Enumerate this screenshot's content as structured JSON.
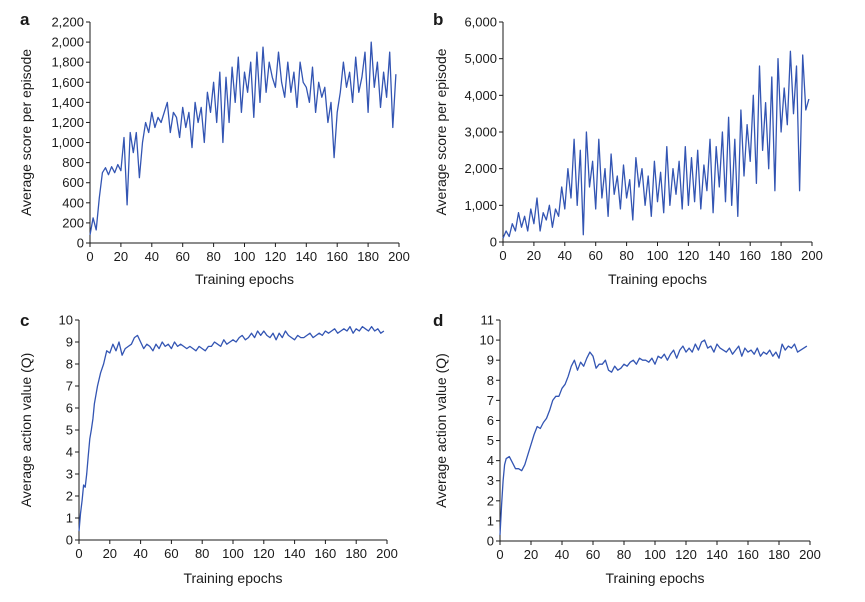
{
  "figure": {
    "background": "#ffffff",
    "line_color": "#3355b3"
  },
  "chart_data": [
    {
      "panel": "a",
      "type": "line",
      "xlabel": "Training epochs",
      "ylabel": "Average score per episode",
      "xlim": [
        0,
        200
      ],
      "ylim": [
        0,
        2200
      ],
      "xticks": [
        0,
        20,
        40,
        60,
        80,
        100,
        120,
        140,
        160,
        180,
        200
      ],
      "yticks": [
        0,
        200,
        400,
        600,
        800,
        1000,
        1200,
        1400,
        1600,
        1800,
        2000,
        2200
      ],
      "xtick_labels": [
        "0",
        "20",
        "40",
        "60",
        "80",
        "100",
        "120",
        "140",
        "160",
        "180",
        "200"
      ],
      "ytick_labels": [
        "0",
        "200",
        "400",
        "600",
        "800",
        "1,000",
        "1,200",
        "1,400",
        "1,600",
        "1,800",
        "2,000",
        "2,200"
      ],
      "series": [
        {
          "name": "score",
          "x": [
            0,
            2,
            4,
            6,
            8,
            10,
            12,
            14,
            16,
            18,
            20,
            22,
            24,
            26,
            28,
            30,
            32,
            34,
            36,
            38,
            40,
            42,
            44,
            46,
            48,
            50,
            52,
            54,
            56,
            58,
            60,
            62,
            64,
            66,
            68,
            70,
            72,
            74,
            76,
            78,
            80,
            82,
            84,
            86,
            88,
            90,
            92,
            94,
            96,
            98,
            100,
            102,
            104,
            106,
            108,
            110,
            112,
            114,
            116,
            118,
            120,
            122,
            124,
            126,
            128,
            130,
            132,
            134,
            136,
            138,
            140,
            142,
            144,
            146,
            148,
            150,
            152,
            154,
            156,
            158,
            160,
            162,
            164,
            166,
            168,
            170,
            172,
            174,
            176,
            178,
            180,
            182,
            184,
            186,
            188,
            190,
            192,
            194,
            196,
            198
          ],
          "y": [
            80,
            250,
            130,
            450,
            700,
            750,
            680,
            760,
            700,
            780,
            720,
            1050,
            380,
            1100,
            900,
            1100,
            650,
            1000,
            1200,
            1100,
            1300,
            1150,
            1250,
            1200,
            1300,
            1400,
            1100,
            1300,
            1250,
            1050,
            1350,
            1150,
            1300,
            950,
            1400,
            1200,
            1350,
            1000,
            1500,
            1300,
            1600,
            1200,
            1700,
            1000,
            1650,
            1200,
            1750,
            1400,
            1850,
            1300,
            1700,
            1500,
            1800,
            1250,
            1900,
            1400,
            1950,
            1500,
            1800,
            1650,
            1550,
            1900,
            1600,
            1450,
            1800,
            1500,
            1700,
            1350,
            1800,
            1600,
            1550,
            1400,
            1750,
            1300,
            1600,
            1450,
            1550,
            1200,
            1400,
            850,
            1300,
            1500,
            1800,
            1550,
            1700,
            1400,
            1850,
            1500,
            1650,
            1900,
            1300,
            2000,
            1550,
            1800,
            1350,
            1700,
            1450,
            1900,
            1150,
            1680
          ]
        }
      ]
    },
    {
      "panel": "b",
      "type": "line",
      "xlabel": "Training epochs",
      "ylabel": "Average score per episode",
      "xlim": [
        0,
        200
      ],
      "ylim": [
        0,
        6000
      ],
      "xticks": [
        0,
        20,
        40,
        60,
        80,
        100,
        120,
        140,
        160,
        180,
        200
      ],
      "yticks": [
        0,
        1000,
        2000,
        3000,
        4000,
        5000,
        6000
      ],
      "xtick_labels": [
        "0",
        "20",
        "40",
        "60",
        "80",
        "100",
        "120",
        "140",
        "160",
        "180",
        "200"
      ],
      "ytick_labels": [
        "0",
        "1,000",
        "2,000",
        "3,000",
        "4,000",
        "5,000",
        "6,000"
      ],
      "series": [
        {
          "name": "score",
          "x": [
            0,
            2,
            4,
            6,
            8,
            10,
            12,
            14,
            16,
            18,
            20,
            22,
            24,
            26,
            28,
            30,
            32,
            34,
            36,
            38,
            40,
            42,
            44,
            46,
            48,
            50,
            52,
            54,
            56,
            58,
            60,
            62,
            64,
            66,
            68,
            70,
            72,
            74,
            76,
            78,
            80,
            82,
            84,
            86,
            88,
            90,
            92,
            94,
            96,
            98,
            100,
            102,
            104,
            106,
            108,
            110,
            112,
            114,
            116,
            118,
            120,
            122,
            124,
            126,
            128,
            130,
            132,
            134,
            136,
            138,
            140,
            142,
            144,
            146,
            148,
            150,
            152,
            154,
            156,
            158,
            160,
            162,
            164,
            166,
            168,
            170,
            172,
            174,
            176,
            178,
            180,
            182,
            184,
            186,
            188,
            190,
            192,
            194,
            196,
            198
          ],
          "y": [
            100,
            300,
            150,
            500,
            300,
            800,
            400,
            700,
            300,
            900,
            500,
            1200,
            300,
            800,
            600,
            1000,
            400,
            900,
            700,
            1500,
            900,
            2000,
            1200,
            2800,
            1000,
            2500,
            200,
            3000,
            1500,
            2200,
            900,
            2800,
            1200,
            2000,
            700,
            2400,
            1300,
            1800,
            900,
            2100,
            1200,
            1700,
            600,
            2300,
            1500,
            2000,
            1000,
            1800,
            700,
            2200,
            1100,
            1900,
            800,
            2600,
            1000,
            2000,
            1300,
            2200,
            900,
            2600,
            1000,
            2300,
            1100,
            2500,
            900,
            2100,
            1400,
            2800,
            800,
            2600,
            1500,
            3000,
            1100,
            3400,
            1000,
            2800,
            700,
            3600,
            1800,
            3200,
            2200,
            4000,
            1600,
            4800,
            2500,
            3800,
            2000,
            4500,
            1400,
            5000,
            3000,
            4200,
            3200,
            5200,
            3500,
            4800,
            1400,
            5100,
            3600,
            3900
          ]
        }
      ]
    },
    {
      "panel": "c",
      "type": "line",
      "xlabel": "Training epochs",
      "ylabel": "Average action value (Q)",
      "xlim": [
        0,
        200
      ],
      "ylim": [
        0,
        10
      ],
      "xticks": [
        0,
        20,
        40,
        60,
        80,
        100,
        120,
        140,
        160,
        180,
        200
      ],
      "yticks": [
        0,
        1,
        2,
        3,
        4,
        5,
        6,
        7,
        8,
        9,
        10
      ],
      "xtick_labels": [
        "0",
        "20",
        "40",
        "60",
        "80",
        "100",
        "120",
        "140",
        "160",
        "180",
        "200"
      ],
      "ytick_labels": [
        "0",
        "1",
        "2",
        "3",
        "4",
        "5",
        "6",
        "7",
        "8",
        "9",
        "10"
      ],
      "series": [
        {
          "name": "Q",
          "x": [
            0,
            1,
            2,
            3,
            4,
            5,
            6,
            7,
            8,
            9,
            10,
            12,
            14,
            16,
            18,
            20,
            22,
            24,
            26,
            28,
            30,
            32,
            34,
            36,
            38,
            40,
            42,
            44,
            46,
            48,
            50,
            52,
            54,
            56,
            58,
            60,
            62,
            64,
            66,
            68,
            70,
            72,
            74,
            76,
            78,
            80,
            82,
            84,
            86,
            88,
            90,
            92,
            94,
            96,
            98,
            100,
            102,
            104,
            106,
            108,
            110,
            112,
            114,
            116,
            118,
            120,
            122,
            124,
            126,
            128,
            130,
            132,
            134,
            136,
            138,
            140,
            142,
            144,
            146,
            148,
            150,
            152,
            154,
            156,
            158,
            160,
            162,
            164,
            166,
            168,
            170,
            172,
            174,
            176,
            178,
            180,
            182,
            184,
            186,
            188,
            190,
            192,
            194,
            196,
            198
          ],
          "y": [
            0.4,
            1.2,
            1.8,
            2.5,
            2.4,
            3.0,
            3.8,
            4.6,
            5.0,
            5.5,
            6.2,
            7.0,
            7.6,
            8.0,
            8.6,
            8.5,
            8.9,
            8.6,
            9.0,
            8.4,
            8.7,
            8.8,
            8.9,
            9.2,
            9.3,
            9.0,
            8.7,
            8.9,
            8.8,
            8.6,
            8.9,
            8.7,
            9.0,
            8.8,
            8.9,
            8.7,
            9.0,
            8.8,
            8.9,
            8.8,
            8.7,
            8.8,
            8.7,
            8.6,
            8.8,
            8.7,
            8.6,
            8.8,
            8.8,
            9.0,
            8.9,
            8.8,
            9.1,
            8.9,
            9.0,
            9.1,
            9.0,
            9.2,
            9.3,
            9.1,
            9.2,
            9.4,
            9.2,
            9.5,
            9.3,
            9.5,
            9.3,
            9.2,
            9.4,
            9.1,
            9.4,
            9.2,
            9.5,
            9.3,
            9.2,
            9.1,
            9.3,
            9.2,
            9.2,
            9.3,
            9.4,
            9.2,
            9.3,
            9.4,
            9.3,
            9.5,
            9.4,
            9.5,
            9.6,
            9.4,
            9.5,
            9.6,
            9.5,
            9.7,
            9.4,
            9.6,
            9.5,
            9.7,
            9.6,
            9.5,
            9.7,
            9.5,
            9.6,
            9.4,
            9.5
          ]
        }
      ]
    },
    {
      "panel": "d",
      "type": "line",
      "xlabel": "Training epochs",
      "ylabel": "Average action value (Q)",
      "xlim": [
        0,
        200
      ],
      "ylim": [
        0,
        11
      ],
      "xticks": [
        0,
        20,
        40,
        60,
        80,
        100,
        120,
        140,
        160,
        180,
        200
      ],
      "yticks": [
        0,
        1,
        2,
        3,
        4,
        5,
        6,
        7,
        8,
        9,
        10,
        11
      ],
      "xtick_labels": [
        "0",
        "20",
        "40",
        "60",
        "80",
        "100",
        "120",
        "140",
        "160",
        "180",
        "200"
      ],
      "ytick_labels": [
        "0",
        "1",
        "2",
        "3",
        "4",
        "5",
        "6",
        "7",
        "8",
        "9",
        "10",
        "11"
      ],
      "series": [
        {
          "name": "Q",
          "x": [
            0,
            1,
            2,
            3,
            4,
            6,
            8,
            10,
            12,
            14,
            16,
            18,
            20,
            22,
            24,
            26,
            28,
            30,
            32,
            34,
            36,
            38,
            40,
            42,
            44,
            46,
            48,
            50,
            52,
            54,
            56,
            58,
            60,
            62,
            64,
            66,
            68,
            70,
            72,
            74,
            76,
            78,
            80,
            82,
            84,
            86,
            88,
            90,
            92,
            94,
            96,
            98,
            100,
            102,
            104,
            106,
            108,
            110,
            112,
            114,
            116,
            118,
            120,
            122,
            124,
            126,
            128,
            130,
            132,
            134,
            136,
            138,
            140,
            142,
            144,
            146,
            148,
            150,
            152,
            154,
            156,
            158,
            160,
            162,
            164,
            166,
            168,
            170,
            172,
            174,
            176,
            178,
            180,
            182,
            184,
            186,
            188,
            190,
            192,
            194,
            196,
            198
          ],
          "y": [
            0.3,
            1.8,
            3.0,
            3.8,
            4.1,
            4.2,
            3.9,
            3.6,
            3.6,
            3.5,
            3.8,
            4.3,
            4.8,
            5.3,
            5.7,
            5.6,
            5.9,
            6.1,
            6.5,
            7.0,
            7.2,
            7.2,
            7.6,
            7.8,
            8.2,
            8.7,
            9.0,
            8.5,
            8.9,
            8.7,
            9.1,
            9.4,
            9.2,
            8.6,
            8.8,
            8.8,
            9.0,
            8.5,
            8.4,
            8.7,
            8.5,
            8.6,
            8.8,
            8.7,
            8.9,
            9.0,
            8.8,
            9.1,
            9.0,
            9.0,
            8.9,
            9.1,
            8.8,
            9.2,
            9.1,
            9.3,
            9.0,
            9.3,
            9.5,
            9.1,
            9.5,
            9.7,
            9.4,
            9.6,
            9.4,
            9.8,
            9.5,
            9.9,
            10.0,
            9.6,
            9.7,
            9.4,
            9.8,
            9.6,
            9.5,
            9.4,
            9.6,
            9.3,
            9.5,
            9.7,
            9.2,
            9.6,
            9.4,
            9.5,
            9.3,
            9.6,
            9.2,
            9.4,
            9.3,
            9.5,
            9.2,
            9.4,
            9.1,
            9.8,
            9.5,
            9.7,
            9.6,
            9.8,
            9.4,
            9.5,
            9.6,
            9.7
          ]
        }
      ]
    }
  ]
}
